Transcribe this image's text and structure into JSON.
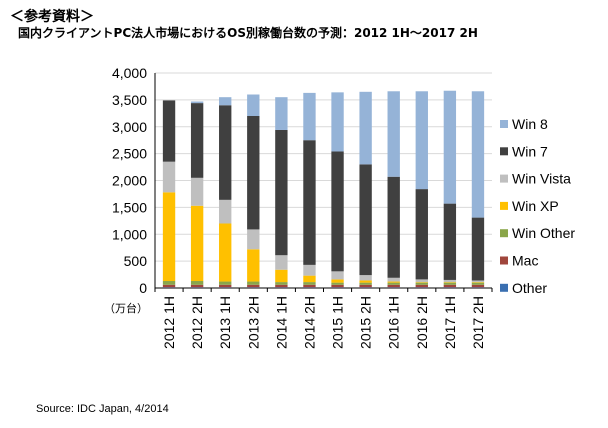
{
  "header": {
    "note": "＜参考資料＞",
    "title": "国内クライアントPC法人市場におけるOS別稼働台数の予測：2012 1H〜2017 2H"
  },
  "source": "Source: IDC Japan, 4/2014",
  "chart_data": {
    "type": "bar",
    "stacked": true,
    "ylabel": "（万台）",
    "ylim": [
      0,
      4000
    ],
    "yticks": [
      "4,000",
      "3,500",
      "3,000",
      "2,500",
      "2,000",
      "1,500",
      "1,000",
      "500",
      "0"
    ],
    "categories": [
      "2012 1H",
      "2012 2H",
      "2013 1H",
      "2013 2H",
      "2014 1H",
      "2014 2H",
      "2015 1H",
      "2015 2H",
      "2016 1H",
      "2016 2H",
      "2017 1H",
      "2017 2H"
    ],
    "legend_position": "right",
    "series": [
      {
        "name": "Other",
        "color": "#3a6fb0",
        "values": [
          10,
          10,
          10,
          10,
          10,
          10,
          10,
          10,
          10,
          10,
          10,
          10
        ]
      },
      {
        "name": "Mac",
        "color": "#a0463c",
        "values": [
          50,
          50,
          50,
          50,
          50,
          50,
          50,
          50,
          50,
          50,
          50,
          50
        ]
      },
      {
        "name": "Win Other",
        "color": "#8aa64a",
        "values": [
          70,
          70,
          60,
          60,
          50,
          50,
          40,
          40,
          40,
          40,
          40,
          40
        ]
      },
      {
        "name": "Win XP",
        "color": "#ffc000",
        "values": [
          1650,
          1400,
          1080,
          600,
          230,
          120,
          60,
          40,
          20,
          10,
          10,
          10
        ]
      },
      {
        "name": "Win Vista",
        "color": "#bfbfbf",
        "values": [
          570,
          520,
          440,
          370,
          270,
          200,
          150,
          100,
          70,
          50,
          40,
          30
        ]
      },
      {
        "name": "Win 7",
        "color": "#404040",
        "values": [
          1140,
          1390,
          1760,
          2110,
          2330,
          2320,
          2230,
          2060,
          1880,
          1680,
          1420,
          1170
        ]
      },
      {
        "name": "Win 8",
        "color": "#95b3d7",
        "values": [
          0,
          30,
          150,
          400,
          610,
          880,
          1100,
          1350,
          1590,
          1820,
          2100,
          2350
        ]
      }
    ],
    "legend_order": [
      "Win 8",
      "Win 7",
      "Win Vista",
      "Win XP",
      "Win Other",
      "Mac",
      "Other"
    ]
  }
}
